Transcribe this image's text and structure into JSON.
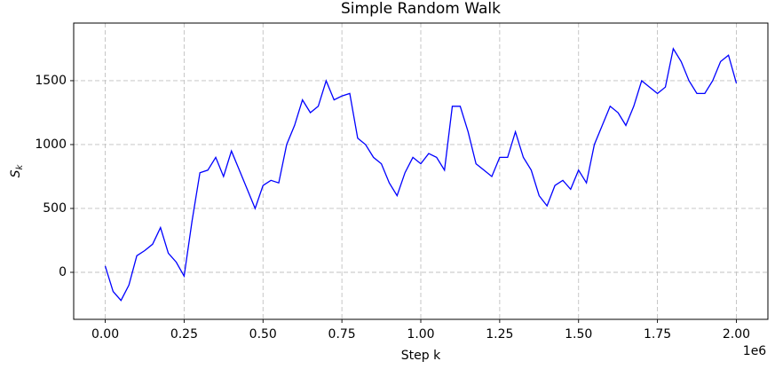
{
  "chart_data": {
    "type": "line",
    "title": "Simple Random Walk",
    "xlabel": "Step k",
    "ylabel": "S",
    "ylabel_subscript": "k",
    "x_offset_label": "1e6",
    "xlim": [
      -100000,
      2100000
    ],
    "ylim": [
      -368,
      1951
    ],
    "xticks": [
      {
        "value": 0,
        "label": "0.00"
      },
      {
        "value": 250000,
        "label": "0.25"
      },
      {
        "value": 500000,
        "label": "0.50"
      },
      {
        "value": 750000,
        "label": "0.75"
      },
      {
        "value": 1000000,
        "label": "1.00"
      },
      {
        "value": 1250000,
        "label": "1.25"
      },
      {
        "value": 1500000,
        "label": "1.50"
      },
      {
        "value": 1750000,
        "label": "1.75"
      },
      {
        "value": 2000000,
        "label": "2.00"
      }
    ],
    "yticks": [
      0,
      500,
      1000,
      1500
    ],
    "grid": true,
    "series": [
      {
        "color": "#0000ff",
        "x": [
          0,
          25000,
          50000,
          75000,
          100000,
          125000,
          150000,
          175000,
          200000,
          225000,
          250000,
          275000,
          300000,
          325000,
          350000,
          375000,
          400000,
          425000,
          450000,
          475000,
          500000,
          525000,
          550000,
          575000,
          600000,
          625000,
          650000,
          675000,
          700000,
          725000,
          750000,
          775000,
          800000,
          825000,
          850000,
          875000,
          900000,
          925000,
          950000,
          975000,
          1000000,
          1025000,
          1050000,
          1075000,
          1100000,
          1125000,
          1150000,
          1175000,
          1200000,
          1225000,
          1250000,
          1275000,
          1300000,
          1325000,
          1350000,
          1375000,
          1400000,
          1425000,
          1450000,
          1475000,
          1500000,
          1525000,
          1550000,
          1575000,
          1600000,
          1625000,
          1650000,
          1675000,
          1700000,
          1725000,
          1750000,
          1775000,
          1800000,
          1825000,
          1850000,
          1875000,
          1900000,
          1925000,
          1950000,
          1975000,
          2000000
        ],
        "values": [
          50,
          -150,
          -220,
          -100,
          130,
          170,
          220,
          350,
          150,
          80,
          -30,
          400,
          780,
          800,
          900,
          750,
          950,
          800,
          650,
          500,
          680,
          720,
          700,
          1000,
          1150,
          1350,
          1250,
          1300,
          1500,
          1350,
          1380,
          1400,
          1050,
          1000,
          900,
          850,
          700,
          600,
          780,
          900,
          850,
          930,
          900,
          800,
          1300,
          1300,
          1100,
          850,
          800,
          750,
          900,
          900,
          1100,
          900,
          800,
          600,
          520,
          680,
          720,
          650,
          800,
          700,
          1000,
          1150,
          1300,
          1250,
          1150,
          1300,
          1500,
          1450,
          1400,
          1450,
          1750,
          1650,
          1500,
          1400,
          1400,
          1500,
          1650,
          1700,
          1480
        ]
      }
    ]
  }
}
